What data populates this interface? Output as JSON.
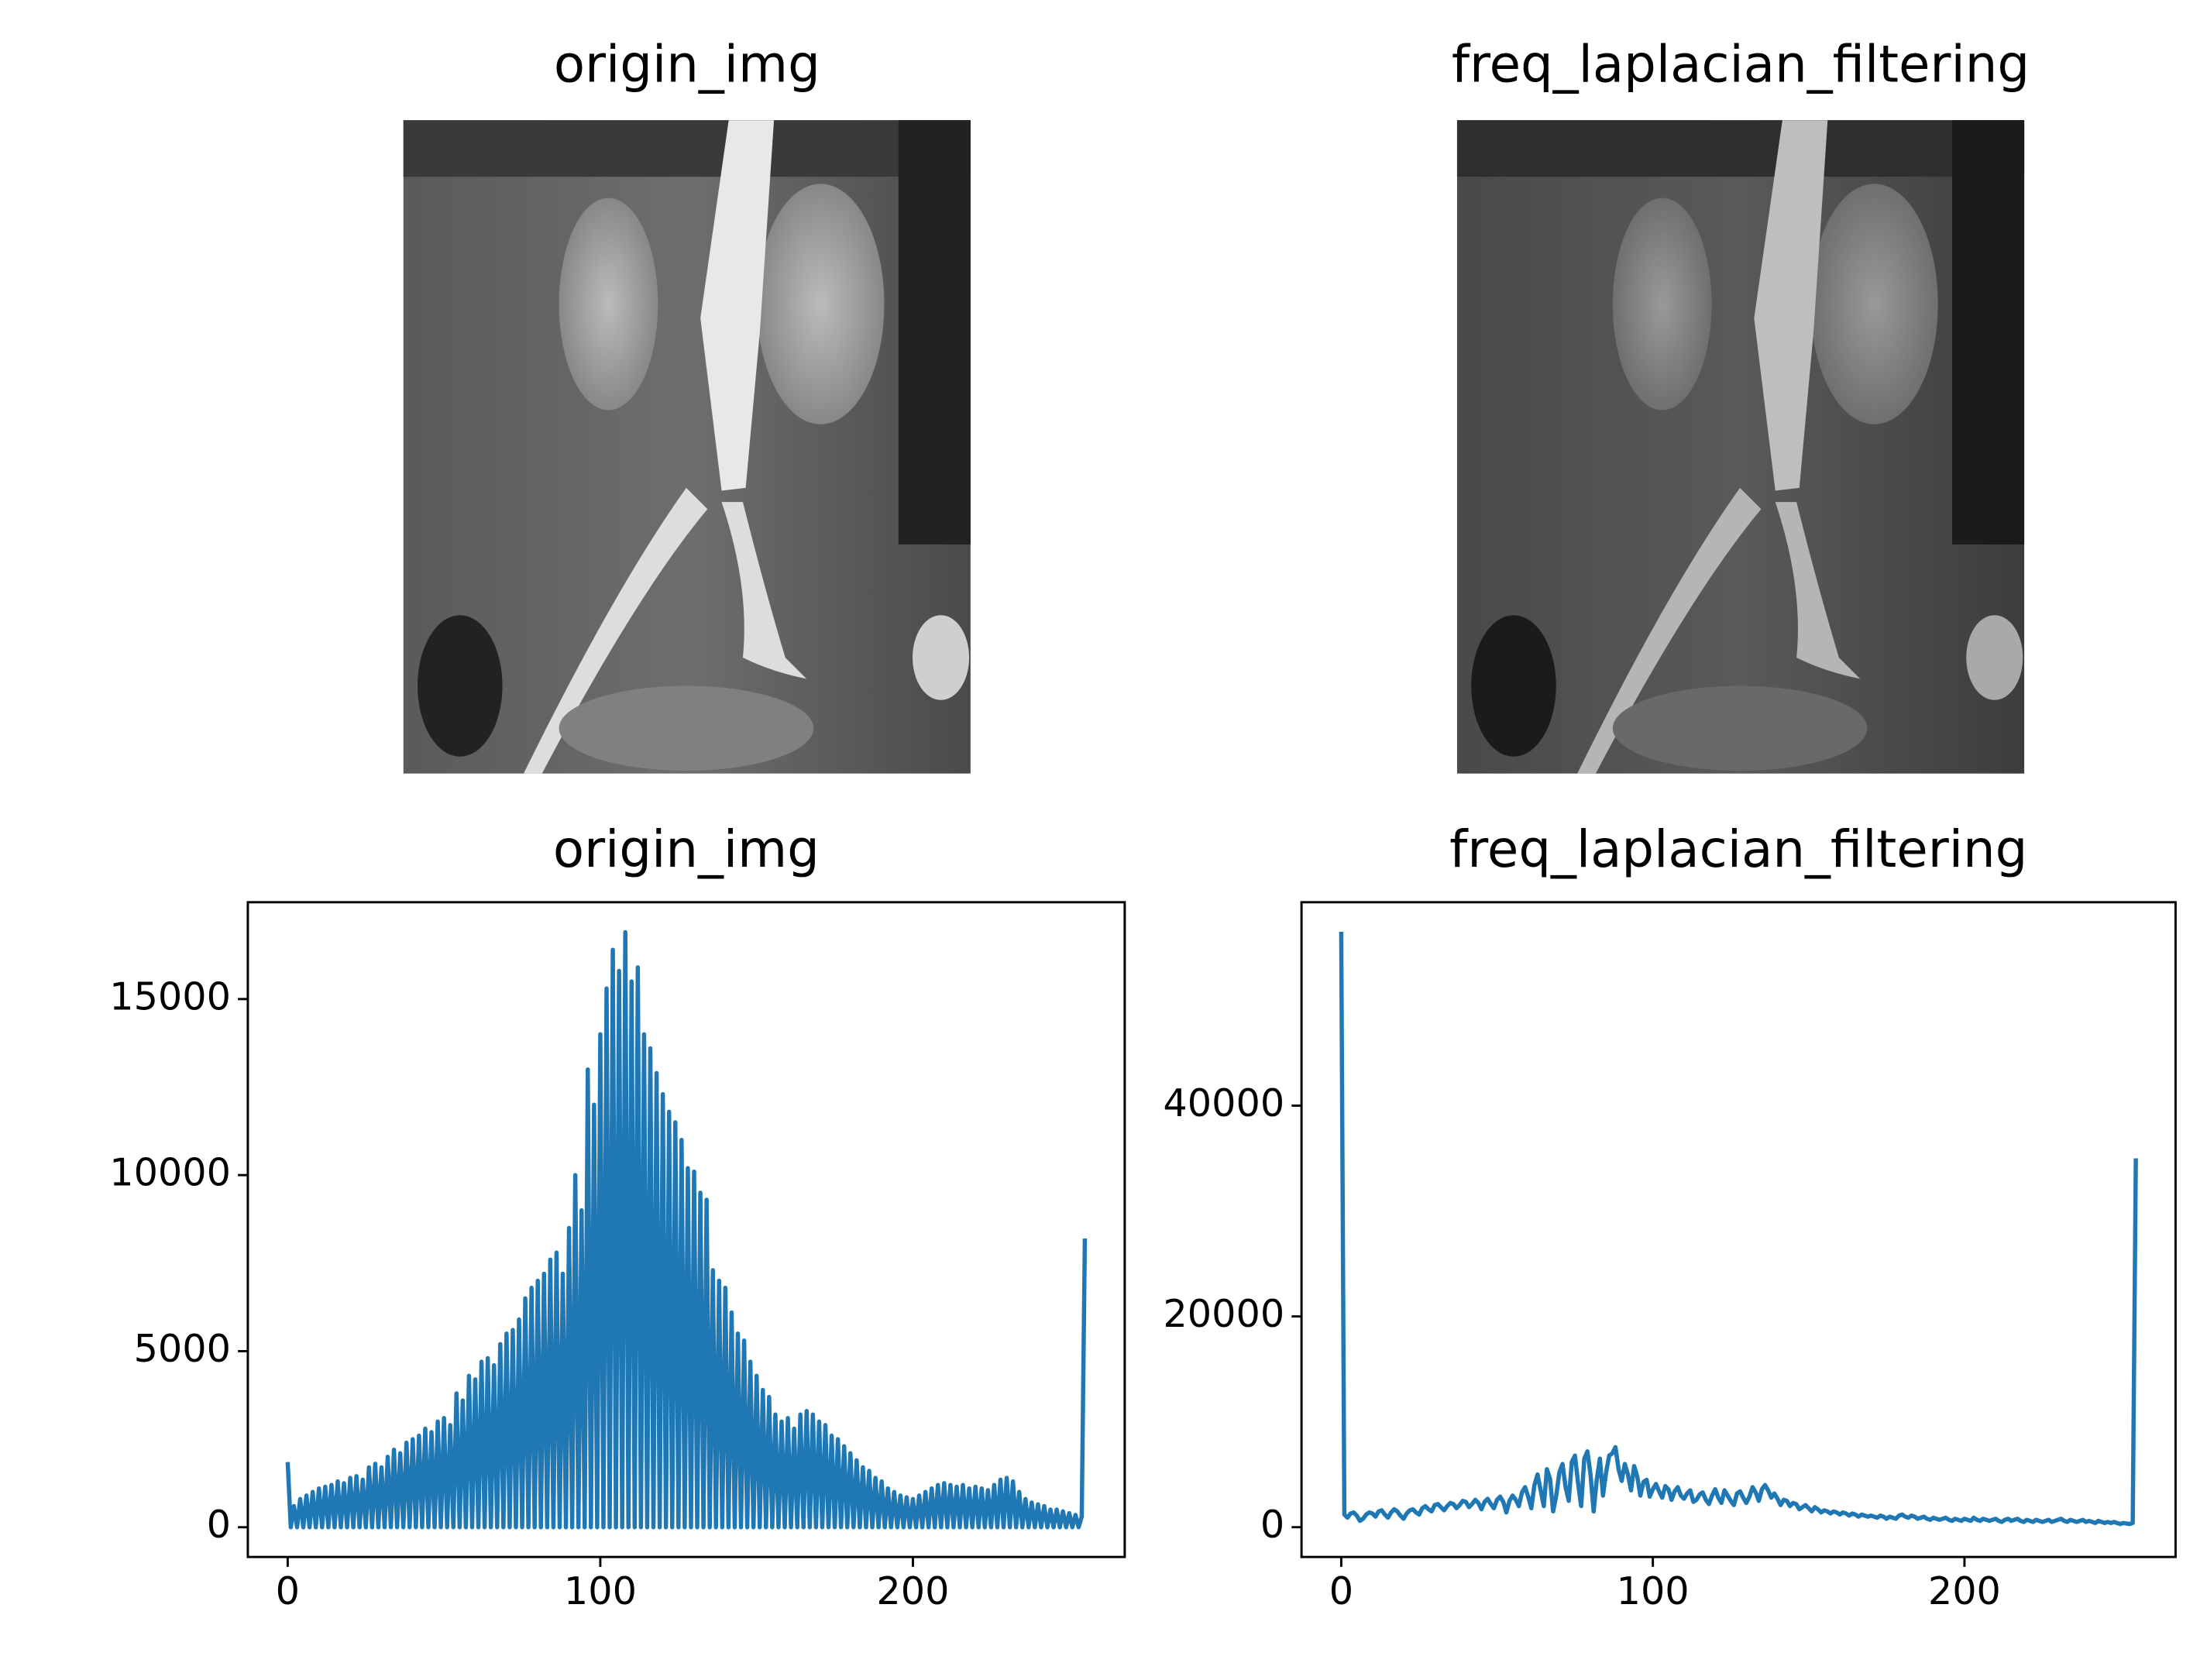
{
  "chart_data": [
    {
      "type": "image",
      "title": "origin_img"
    },
    {
      "type": "image",
      "title": "freq_laplacian_filtering"
    },
    {
      "type": "line",
      "title": "origin_img",
      "color": "#1f77b4",
      "x": [
        0,
        1,
        2,
        3,
        4,
        5,
        6,
        7,
        8,
        9,
        10,
        11,
        12,
        13,
        14,
        15,
        16,
        17,
        18,
        19,
        20,
        21,
        22,
        23,
        24,
        25,
        26,
        27,
        28,
        29,
        30,
        31,
        32,
        33,
        34,
        35,
        36,
        37,
        38,
        39,
        40,
        41,
        42,
        43,
        44,
        45,
        46,
        47,
        48,
        49,
        50,
        51,
        52,
        53,
        54,
        55,
        56,
        57,
        58,
        59,
        60,
        61,
        62,
        63,
        64,
        65,
        66,
        67,
        68,
        69,
        70,
        71,
        72,
        73,
        74,
        75,
        76,
        77,
        78,
        79,
        80,
        81,
        82,
        83,
        84,
        85,
        86,
        87,
        88,
        89,
        90,
        91,
        92,
        93,
        94,
        95,
        96,
        97,
        98,
        99,
        100,
        101,
        102,
        103,
        104,
        105,
        106,
        107,
        108,
        109,
        110,
        111,
        112,
        113,
        114,
        115,
        116,
        117,
        118,
        119,
        120,
        121,
        122,
        123,
        124,
        125,
        126,
        127,
        128,
        129,
        130,
        131,
        132,
        133,
        134,
        135,
        136,
        137,
        138,
        139,
        140,
        141,
        142,
        143,
        144,
        145,
        146,
        147,
        148,
        149,
        150,
        151,
        152,
        153,
        154,
        155,
        156,
        157,
        158,
        159,
        160,
        161,
        162,
        163,
        164,
        165,
        166,
        167,
        168,
        169,
        170,
        171,
        172,
        173,
        174,
        175,
        176,
        177,
        178,
        179,
        180,
        181,
        182,
        183,
        184,
        185,
        186,
        187,
        188,
        189,
        190,
        191,
        192,
        193,
        194,
        195,
        196,
        197,
        198,
        199,
        200,
        201,
        202,
        203,
        204,
        205,
        206,
        207,
        208,
        209,
        210,
        211,
        212,
        213,
        214,
        215,
        216,
        217,
        218,
        219,
        220,
        221,
        222,
        223,
        224,
        225,
        226,
        227,
        228,
        229,
        230,
        231,
        232,
        233,
        234,
        235,
        236,
        237,
        238,
        239,
        240,
        241,
        242,
        243,
        244,
        245,
        246,
        247,
        248,
        249,
        250,
        251,
        252,
        253,
        254,
        255
      ],
      "values": [
        1850,
        0,
        600,
        0,
        800,
        0,
        900,
        0,
        1000,
        0,
        1100,
        0,
        1150,
        0,
        1200,
        0,
        1300,
        0,
        1250,
        0,
        1400,
        0,
        1450,
        0,
        1350,
        0,
        1700,
        0,
        1800,
        0,
        1700,
        0,
        2000,
        0,
        2200,
        0,
        2100,
        0,
        2400,
        0,
        2500,
        0,
        2600,
        0,
        2800,
        0,
        2700,
        0,
        3000,
        0,
        3100,
        0,
        2900,
        0,
        3800,
        0,
        3600,
        0,
        4300,
        0,
        4200,
        0,
        4700,
        0,
        4800,
        0,
        4600,
        0,
        5200,
        0,
        5500,
        0,
        5600,
        0,
        5900,
        0,
        6500,
        0,
        6800,
        0,
        7000,
        0,
        7200,
        0,
        7600,
        0,
        7800,
        0,
        7200,
        0,
        8500,
        0,
        10000,
        0,
        9000,
        0,
        13000,
        0,
        12000,
        0,
        14000,
        0,
        15300,
        0,
        16400,
        0,
        15800,
        0,
        16900,
        0,
        15500,
        0,
        15900,
        0,
        14000,
        0,
        13600,
        0,
        12900,
        0,
        12300,
        0,
        11800,
        0,
        11500,
        0,
        11000,
        0,
        10200,
        0,
        10100,
        0,
        9500,
        0,
        9300,
        0,
        7300,
        0,
        7000,
        0,
        6800,
        0,
        6100,
        0,
        5500,
        0,
        5300,
        0,
        4700,
        0,
        4300,
        0,
        3900,
        0,
        3700,
        0,
        3200,
        0,
        3000,
        0,
        3100,
        0,
        2800,
        0,
        3200,
        0,
        3300,
        0,
        3200,
        0,
        3000,
        0,
        2900,
        0,
        2600,
        0,
        2500,
        0,
        2300,
        0,
        2100,
        0,
        1900,
        0,
        1700,
        0,
        1600,
        0,
        1400,
        0,
        1300,
        0,
        1100,
        0,
        1000,
        0,
        900,
        0,
        850,
        0,
        800,
        0,
        900,
        0,
        1000,
        0,
        1100,
        0,
        1200,
        0,
        1250,
        0,
        1200,
        0,
        1150,
        0,
        1200,
        0,
        1100,
        0,
        1150,
        0,
        1100,
        0,
        1050,
        0,
        1200,
        0,
        1350,
        0,
        1400,
        0,
        1300,
        0,
        1000,
        0,
        800,
        0,
        700,
        0,
        650,
        0,
        600,
        0,
        500,
        0,
        500,
        0,
        450,
        0,
        400,
        0,
        350,
        0,
        300,
        8200
      ],
      "xlim": [
        -12.75,
        267.75
      ],
      "ylim": [
        -845,
        17750
      ],
      "xticks": [
        0,
        100,
        200
      ],
      "yticks": [
        0,
        5000,
        10000,
        15000
      ]
    },
    {
      "type": "line",
      "title": "freq_laplacian_filtering",
      "color": "#1f77b4",
      "x": [
        0,
        1,
        2,
        3,
        4,
        5,
        6,
        7,
        8,
        9,
        10,
        11,
        12,
        13,
        14,
        15,
        16,
        17,
        18,
        19,
        20,
        21,
        22,
        23,
        24,
        25,
        26,
        27,
        28,
        29,
        30,
        31,
        32,
        33,
        34,
        35,
        36,
        37,
        38,
        39,
        40,
        41,
        42,
        43,
        44,
        45,
        46,
        47,
        48,
        49,
        50,
        51,
        52,
        53,
        54,
        55,
        56,
        57,
        58,
        59,
        60,
        61,
        62,
        63,
        64,
        65,
        66,
        67,
        68,
        69,
        70,
        71,
        72,
        73,
        74,
        75,
        76,
        77,
        78,
        79,
        80,
        81,
        82,
        83,
        84,
        85,
        86,
        87,
        88,
        89,
        90,
        91,
        92,
        93,
        94,
        95,
        96,
        97,
        98,
        99,
        100,
        101,
        102,
        103,
        104,
        105,
        106,
        107,
        108,
        109,
        110,
        111,
        112,
        113,
        114,
        115,
        116,
        117,
        118,
        119,
        120,
        121,
        122,
        123,
        124,
        125,
        126,
        127,
        128,
        129,
        130,
        131,
        132,
        133,
        134,
        135,
        136,
        137,
        138,
        139,
        140,
        141,
        142,
        143,
        144,
        145,
        146,
        147,
        148,
        149,
        150,
        151,
        152,
        153,
        154,
        155,
        156,
        157,
        158,
        159,
        160,
        161,
        162,
        163,
        164,
        165,
        166,
        167,
        168,
        169,
        170,
        171,
        172,
        173,
        174,
        175,
        176,
        177,
        178,
        179,
        180,
        181,
        182,
        183,
        184,
        185,
        186,
        187,
        188,
        189,
        190,
        191,
        192,
        193,
        194,
        195,
        196,
        197,
        198,
        199,
        200,
        201,
        202,
        203,
        204,
        205,
        206,
        207,
        208,
        209,
        210,
        211,
        212,
        213,
        214,
        215,
        216,
        217,
        218,
        219,
        220,
        221,
        222,
        223,
        224,
        225,
        226,
        227,
        228,
        229,
        230,
        231,
        232,
        233,
        234,
        235,
        236,
        237,
        238,
        239,
        240,
        241,
        242,
        243,
        244,
        245,
        246,
        247,
        248,
        249,
        250,
        251,
        252,
        253,
        254,
        255
      ],
      "values": [
        56500,
        1200,
        900,
        1300,
        1400,
        1100,
        600,
        800,
        1200,
        1400,
        1300,
        1000,
        1500,
        1600,
        1200,
        900,
        1400,
        1700,
        1500,
        1100,
        800,
        1300,
        1600,
        1700,
        1400,
        1200,
        1800,
        2000,
        1700,
        1500,
        2100,
        2200,
        1900,
        1600,
        2000,
        2300,
        2200,
        1800,
        2100,
        2500,
        2400,
        1900,
        2200,
        2600,
        2300,
        1700,
        2400,
        2700,
        2200,
        1800,
        2600,
        2900,
        2400,
        1400,
        2500,
        3000,
        2600,
        2000,
        3300,
        3800,
        2900,
        1800,
        4000,
        5000,
        3500,
        2000,
        5500,
        4600,
        1500,
        3000,
        5200,
        6000,
        3800,
        2500,
        6200,
        6800,
        4200,
        2000,
        6500,
        7200,
        5000,
        1500,
        4500,
        6500,
        3000,
        5200,
        6800,
        7000,
        7600,
        5500,
        4400,
        6000,
        5000,
        3500,
        5800,
        4800,
        3000,
        4300,
        4500,
        2900,
        3600,
        4100,
        3400,
        2800,
        3900,
        3600,
        2600,
        3400,
        3800,
        3000,
        2700,
        3200,
        3500,
        2400,
        2600,
        3100,
        3300,
        2600,
        2200,
        3000,
        3600,
        2800,
        2300,
        3500,
        3000,
        2500,
        2100,
        3200,
        3400,
        2800,
        2300,
        2900,
        3800,
        3300,
        2500,
        3600,
        4000,
        3500,
        2800,
        3200,
        2700,
        2100,
        2600,
        2500,
        2000,
        2300,
        2200,
        1700,
        1900,
        2100,
        1800,
        1500,
        1900,
        1700,
        1400,
        1600,
        1500,
        1300,
        1500,
        1400,
        1200,
        1400,
        1300,
        1100,
        1300,
        1200,
        1000,
        1200,
        1100,
        1000,
        1100,
        1000,
        900,
        1100,
        1000,
        800,
        1000,
        900,
        800,
        1100,
        1200,
        1000,
        900,
        1100,
        1000,
        800,
        900,
        1000,
        800,
        700,
        900,
        800,
        700,
        800,
        900,
        700,
        600,
        800,
        700,
        600,
        800,
        700,
        600,
        900,
        700,
        600,
        800,
        700,
        600,
        700,
        800,
        600,
        500,
        700,
        800,
        600,
        700,
        800,
        600,
        500,
        700,
        600,
        500,
        700,
        600,
        500,
        600,
        700,
        500,
        600,
        700,
        800,
        600,
        500,
        700,
        600,
        500,
        600,
        700,
        500,
        600,
        500,
        400,
        600,
        500,
        400,
        500,
        400,
        500,
        400,
        300,
        400,
        350,
        300,
        400,
        35000
      ],
      "xlim": [
        -12.75,
        267.75
      ],
      "ylim": [
        -2825,
        59300
      ],
      "xticks": [
        0,
        100,
        200
      ],
      "yticks": [
        0,
        20000,
        40000
      ]
    }
  ]
}
